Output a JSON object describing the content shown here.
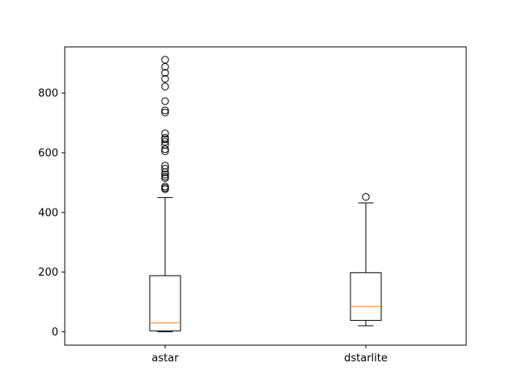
{
  "chart_data": {
    "type": "boxplot",
    "title": "",
    "xlabel": "",
    "ylabel": "",
    "categories": [
      "astar",
      "dstarlite"
    ],
    "yticks": [
      {
        "value": 0,
        "label": "0"
      },
      {
        "value": 200,
        "label": "200"
      },
      {
        "value": 400,
        "label": "400"
      },
      {
        "value": 600,
        "label": "600"
      },
      {
        "value": 800,
        "label": "800"
      }
    ],
    "ylim": [
      -45,
      955
    ],
    "series": [
      {
        "category": "astar",
        "whisker_low": 0,
        "q1": 3,
        "median": 30,
        "q3": 188,
        "whisker_high": 450,
        "outliers": [
          478,
          482,
          487,
          515,
          520,
          527,
          535,
          547,
          557,
          605,
          612,
          627,
          637,
          645,
          650,
          665,
          735,
          742,
          773,
          822,
          848,
          868,
          888,
          912
        ]
      },
      {
        "category": "dstarlite",
        "whisker_low": 20,
        "q1": 38,
        "median": 85,
        "q3": 198,
        "whisker_high": 432,
        "outliers": [
          452
        ]
      }
    ],
    "colors": {
      "box": "#000000",
      "median": "#ff7f0e",
      "outlier": "#000000"
    },
    "grid": false,
    "legend": "none"
  }
}
